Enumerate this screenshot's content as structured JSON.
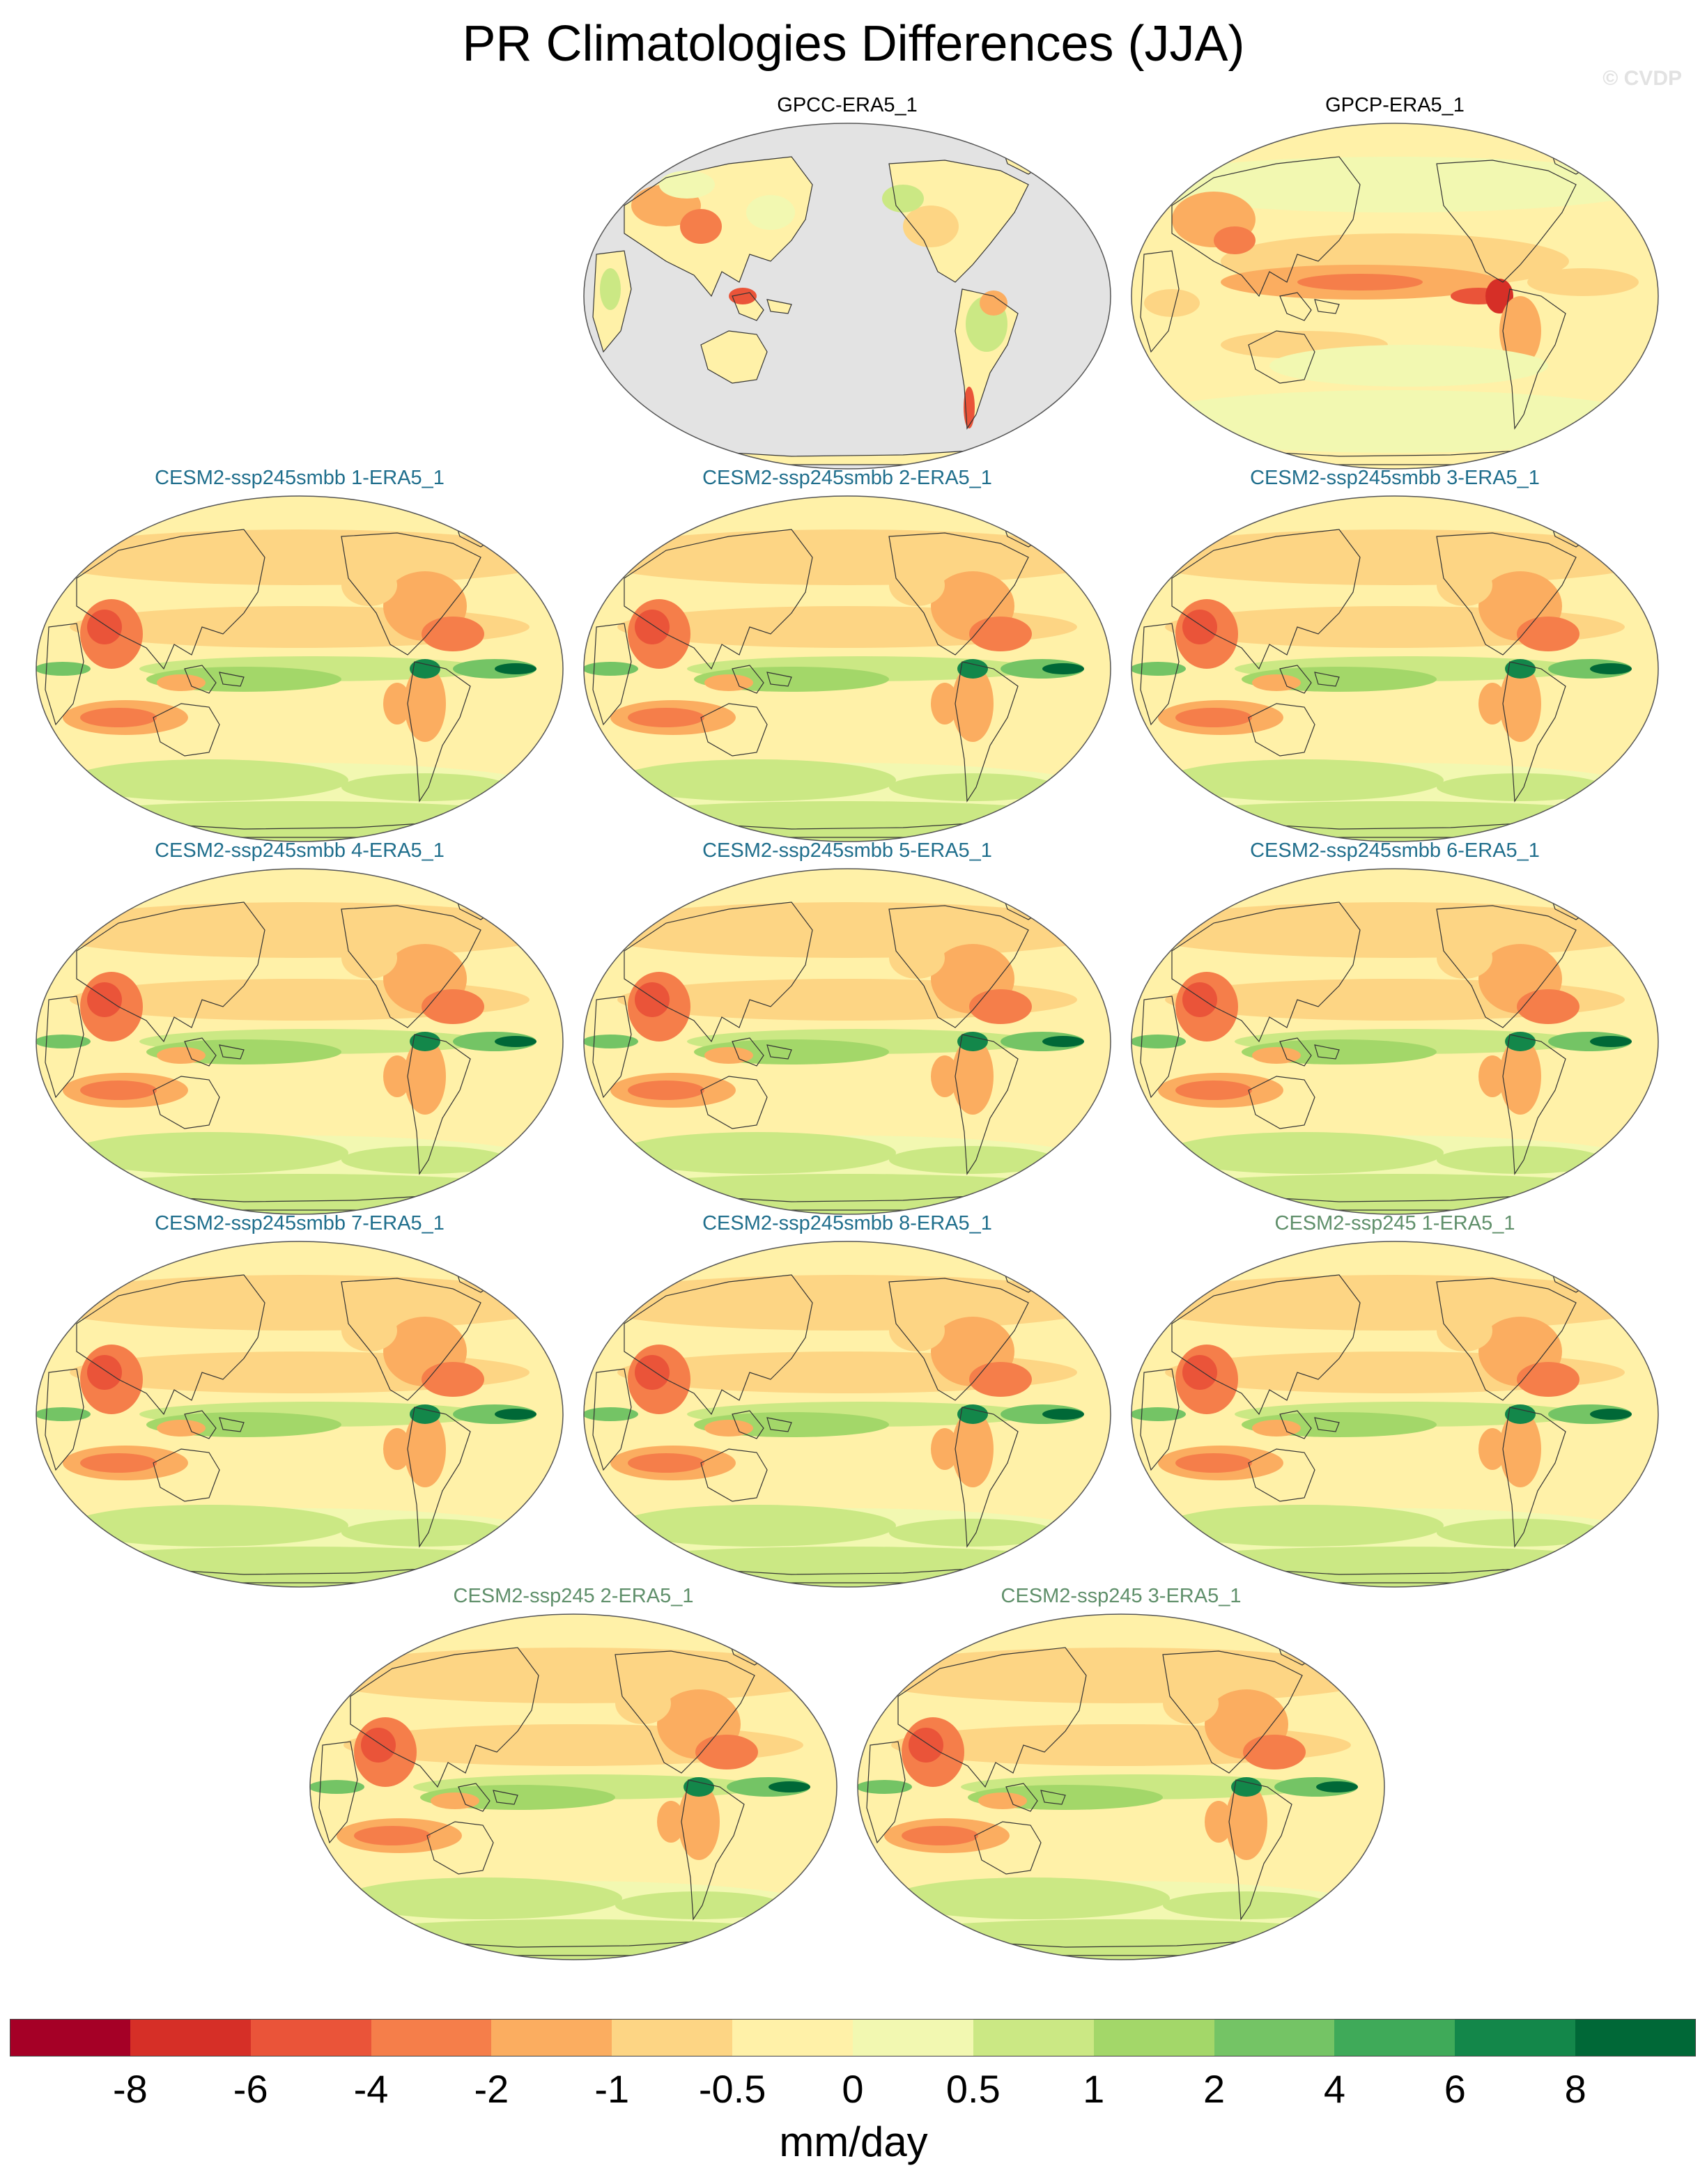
{
  "title": "PR Climatologies Differences (JJA)",
  "watermark": "© CVDP",
  "panels": [
    {
      "title": "GPCC-ERA5_1",
      "title_color": "#000000",
      "land_only": true
    },
    {
      "title": "GPCP-ERA5_1",
      "title_color": "#000000",
      "land_only": false
    },
    {
      "title": "CESM2-ssp245smbb 1-ERA5_1",
      "title_color": "#1f6e8c",
      "land_only": false
    },
    {
      "title": "CESM2-ssp245smbb 2-ERA5_1",
      "title_color": "#1f6e8c",
      "land_only": false
    },
    {
      "title": "CESM2-ssp245smbb 3-ERA5_1",
      "title_color": "#1f6e8c",
      "land_only": false
    },
    {
      "title": "CESM2-ssp245smbb 4-ERA5_1",
      "title_color": "#1f6e8c",
      "land_only": false
    },
    {
      "title": "CESM2-ssp245smbb 5-ERA5_1",
      "title_color": "#1f6e8c",
      "land_only": false
    },
    {
      "title": "CESM2-ssp245smbb 6-ERA5_1",
      "title_color": "#1f6e8c",
      "land_only": false
    },
    {
      "title": "CESM2-ssp245smbb 7-ERA5_1",
      "title_color": "#1f6e8c",
      "land_only": false
    },
    {
      "title": "CESM2-ssp245smbb 8-ERA5_1",
      "title_color": "#1f6e8c",
      "land_only": false
    },
    {
      "title": "CESM2-ssp245 1-ERA5_1",
      "title_color": "#5f8f6a",
      "land_only": false
    },
    {
      "title": "CESM2-ssp245 2-ERA5_1",
      "title_color": "#5f8f6a",
      "land_only": false
    },
    {
      "title": "CESM2-ssp245 3-ERA5_1",
      "title_color": "#5f8f6a",
      "land_only": false
    }
  ],
  "colorbar": {
    "units": "mm/day",
    "colors": [
      "#a50026",
      "#d62f27",
      "#ea5439",
      "#f57e4a",
      "#fbad60",
      "#fdd584",
      "#fff1a8",
      "#f2f8b1",
      "#cbe884",
      "#a3d769",
      "#74c465",
      "#3faa59",
      "#13874a",
      "#006837"
    ],
    "labels": [
      "-8",
      "-6",
      "-4",
      "-2",
      "-1",
      "-0.5",
      "0",
      "0.5",
      "1",
      "2",
      "4",
      "6",
      "8"
    ]
  },
  "colors": {
    "ocean_missing": "#e3e3e3",
    "coast": "#333333",
    "background": "#ffffff"
  }
}
